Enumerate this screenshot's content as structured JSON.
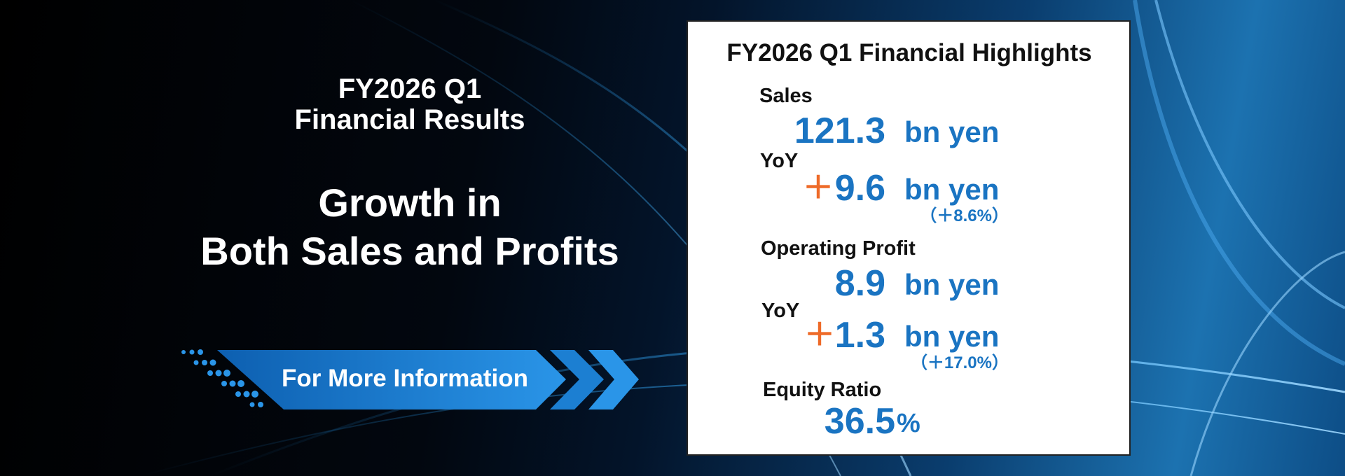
{
  "banner": {
    "title_lines": [
      "FY2026 Q1",
      "Financial Results"
    ],
    "headline_lines": [
      "Growth in",
      "Both Sales and Profits"
    ],
    "button": "For More Information"
  },
  "panel": {
    "title": "FY2026 Q1 Financial Highlights",
    "items": [
      {
        "label": "Sales",
        "value": "121.3",
        "unit": "bn yen"
      },
      {
        "label": "YoY",
        "sign": "＋",
        "value": "9.6",
        "unit": "bn yen",
        "change": "（＋8.6%）"
      },
      {
        "label": "Operating Profit",
        "value": "8.9",
        "unit": "bn yen"
      },
      {
        "label": "YoY",
        "sign": "＋",
        "value": "1.3",
        "unit": "bn yen",
        "change": "（＋17.0%）"
      },
      {
        "label": "Equity Ratio",
        "value": "36.5",
        "unit": "%"
      }
    ]
  }
}
